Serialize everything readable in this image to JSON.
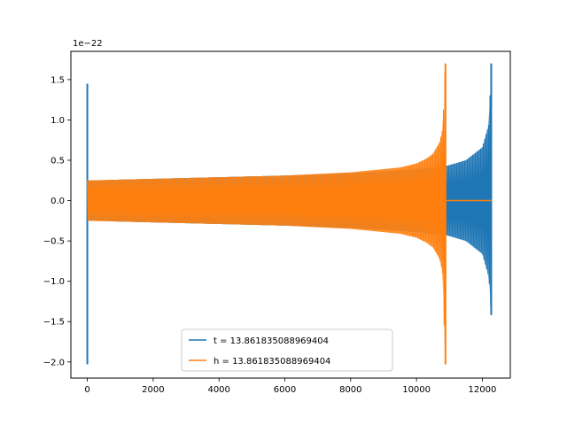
{
  "chart_data": {
    "type": "line",
    "title": "",
    "xlabel": "",
    "ylabel": "",
    "y_offset_label": "1e−22",
    "xlim": [
      -500,
      12850
    ],
    "ylim": [
      -2.2,
      1.85
    ],
    "x_ticks": [
      0,
      2000,
      4000,
      6000,
      8000,
      10000,
      12000
    ],
    "x_tick_labels": [
      "0",
      "2000",
      "4000",
      "6000",
      "8000",
      "10000",
      "12000"
    ],
    "y_ticks": [
      1.5,
      1.0,
      0.5,
      0.0,
      -0.5,
      -1.0,
      -1.5,
      -2.0
    ],
    "y_tick_labels": [
      "1.5",
      "1.0",
      "0.5",
      "0.0",
      "−0.5",
      "−1.0",
      "−1.5",
      "−2.0"
    ],
    "grid": false,
    "legend_position": "bottom-center",
    "series": [
      {
        "name": "t = 13.861835088969404",
        "color": "#1f77b4",
        "envelope": {
          "x": [
            0,
            500,
            1000,
            2000,
            4000,
            6000,
            8000,
            9000,
            10000,
            10500,
            10800,
            10900,
            11000,
            11500,
            12000,
            12200,
            12270
          ],
          "upper": [
            0.25,
            0.25,
            0.26,
            0.27,
            0.29,
            0.31,
            0.34,
            0.36,
            0.39,
            0.41,
            0.42,
            0.43,
            0.44,
            0.5,
            0.66,
            0.95,
            1.7
          ],
          "lower": [
            -0.25,
            -0.25,
            -0.26,
            -0.27,
            -0.29,
            -0.31,
            -0.34,
            -0.36,
            -0.39,
            -0.41,
            -0.42,
            -0.43,
            -0.44,
            -0.5,
            -0.66,
            -0.95,
            -1.42
          ]
        },
        "spikes": [
          {
            "x": 0,
            "max": 1.45,
            "min": -2.03
          },
          {
            "x": 12270,
            "max": 1.7,
            "min": -1.42
          }
        ],
        "end_x": 12280
      },
      {
        "name": "h = 13.861835088969404",
        "color": "#ff7f0e",
        "envelope": {
          "x": [
            0,
            1000,
            2000,
            4000,
            6000,
            7000,
            8000,
            9000,
            9500,
            10000,
            10300,
            10500,
            10700,
            10800,
            10870
          ],
          "upper": [
            0.25,
            0.26,
            0.27,
            0.29,
            0.31,
            0.33,
            0.35,
            0.39,
            0.41,
            0.46,
            0.52,
            0.58,
            0.72,
            0.9,
            1.7
          ],
          "lower": [
            -0.25,
            -0.26,
            -0.27,
            -0.29,
            -0.31,
            -0.33,
            -0.35,
            -0.39,
            -0.41,
            -0.46,
            -0.52,
            -0.58,
            -0.72,
            -0.9,
            -2.03
          ]
        },
        "spikes": [
          {
            "x": 10880,
            "max": 1.7,
            "min": -2.03
          }
        ],
        "flat_after": {
          "x_start": 10880,
          "x_end": 12280,
          "value": 0.0
        }
      }
    ]
  }
}
